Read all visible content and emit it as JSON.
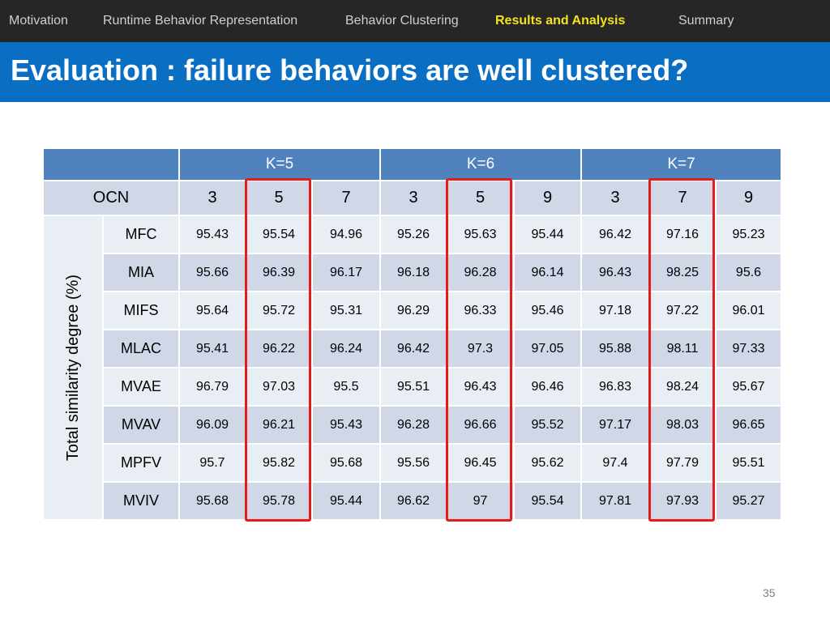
{
  "nav": {
    "items": [
      {
        "label": "Motivation",
        "active": false
      },
      {
        "label": "Runtime Behavior Representation",
        "active": false
      },
      {
        "label": "Behavior Clustering",
        "active": false
      },
      {
        "label": "Results and Analysis",
        "active": true
      },
      {
        "label": "Summary",
        "active": false
      }
    ]
  },
  "slide": {
    "title": "Evaluation : failure behaviors are well clustered?",
    "page_number": "35"
  },
  "table": {
    "k_headers": [
      "K=5",
      "K=6",
      "K=7"
    ],
    "ocn_label": "OCN",
    "ocn_values": [
      "3",
      "5",
      "7",
      "3",
      "5",
      "9",
      "3",
      "7",
      "9"
    ],
    "y_label": "Total similarity degree (%)",
    "highlighted_columns": [
      "K=5, OCN=5",
      "K=6, OCN=5",
      "K=7, OCN=7"
    ],
    "rows": [
      {
        "name": "MFC",
        "values": [
          "95.43",
          "95.54",
          "94.96",
          "95.26",
          "95.63",
          "95.44",
          "96.42",
          "97.16",
          "95.23"
        ]
      },
      {
        "name": "MIA",
        "values": [
          "95.66",
          "96.39",
          "96.17",
          "96.18",
          "96.28",
          "96.14",
          "96.43",
          "98.25",
          "95.6"
        ]
      },
      {
        "name": "MIFS",
        "values": [
          "95.64",
          "95.72",
          "95.31",
          "96.29",
          "96.33",
          "95.46",
          "97.18",
          "97.22",
          "96.01"
        ]
      },
      {
        "name": "MLAC",
        "values": [
          "95.41",
          "96.22",
          "96.24",
          "96.42",
          "97.3",
          "97.05",
          "95.88",
          "98.11",
          "97.33"
        ]
      },
      {
        "name": "MVAE",
        "values": [
          "96.79",
          "97.03",
          "95.5",
          "95.51",
          "96.43",
          "96.46",
          "96.83",
          "98.24",
          "95.67"
        ]
      },
      {
        "name": "MVAV",
        "values": [
          "96.09",
          "96.21",
          "95.43",
          "96.28",
          "96.66",
          "95.52",
          "97.17",
          "98.03",
          "96.65"
        ]
      },
      {
        "name": "MPFV",
        "values": [
          "95.7",
          "95.82",
          "95.68",
          "95.56",
          "96.45",
          "95.62",
          "97.4",
          "97.79",
          "95.51"
        ]
      },
      {
        "name": "MVIV",
        "values": [
          "95.68",
          "95.78",
          "95.44",
          "96.62",
          "97",
          "95.54",
          "97.81",
          "97.93",
          "95.27"
        ]
      }
    ]
  }
}
